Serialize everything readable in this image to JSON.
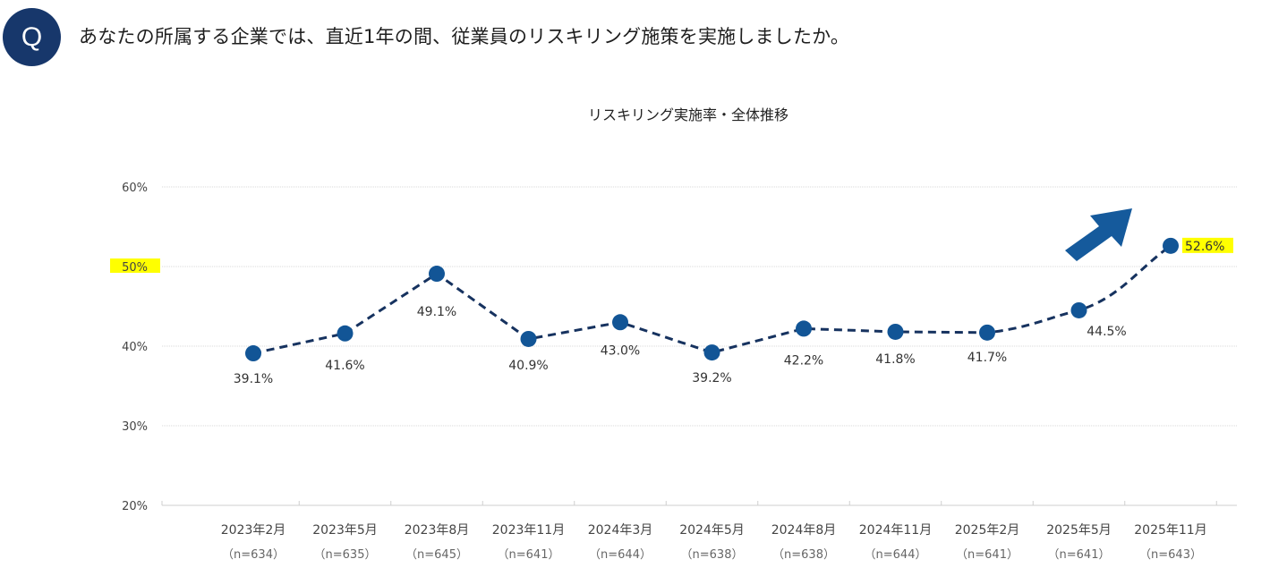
{
  "question": {
    "badge": "Q",
    "text": "あなたの所属する企業では、直近1年の間、従業員のリスキリング施策を実施しましたか。"
  },
  "colors": {
    "badge": "#17376b",
    "marker": "#125596",
    "line": "#16325f",
    "highlight": "#ffff00",
    "arrow": "#155a9c",
    "gridline": "#d9d9d9"
  },
  "chart_data": {
    "type": "line",
    "title": "リスキリング実施率・全体推移",
    "xlabel": "",
    "ylabel": "",
    "ylim": [
      20,
      60
    ],
    "yticks": [
      {
        "value": 60,
        "label": "60%",
        "highlight": false
      },
      {
        "value": 50,
        "label": "50%",
        "highlight": true
      },
      {
        "value": 40,
        "label": "40%",
        "highlight": false
      },
      {
        "value": 30,
        "label": "30%",
        "highlight": false
      },
      {
        "value": 20,
        "label": "20%",
        "highlight": false
      }
    ],
    "grid": true,
    "line_style": "dashed",
    "categories": [
      "2023年2月",
      "2023年5月",
      "2023年8月",
      "2023年11月",
      "2024年3月",
      "2024年5月",
      "2024年8月",
      "2024年11月",
      "2025年2月",
      "2025年5月",
      "2025年11月"
    ],
    "sample_sizes": [
      "（n=634）",
      "（n=635）",
      "（n=645）",
      "（n=641）",
      "（n=644）",
      "（n=638）",
      "（n=638）",
      "（n=644）",
      "（n=641）",
      "（n=641）",
      "（n=643）"
    ],
    "series": [
      {
        "name": "リスキリング実施率",
        "values": [
          39.1,
          41.6,
          49.1,
          40.9,
          43.0,
          39.2,
          42.2,
          41.8,
          41.7,
          44.5,
          52.6
        ],
        "labels": [
          "39.1%",
          "41.6%",
          "49.1%",
          "40.9%",
          "43.0%",
          "39.2%",
          "42.2%",
          "41.8%",
          "41.7%",
          "44.5%",
          "52.6%"
        ],
        "label_position": [
          "below-left",
          "below",
          "below",
          "below",
          "below",
          "below",
          "below",
          "below",
          "below",
          "below-right",
          "right"
        ],
        "highlighted_index": 10
      }
    ],
    "annotations": [
      {
        "type": "arrow",
        "direction": "up-right",
        "near_category": "2025年11月",
        "meaning": "upward trend"
      }
    ]
  }
}
